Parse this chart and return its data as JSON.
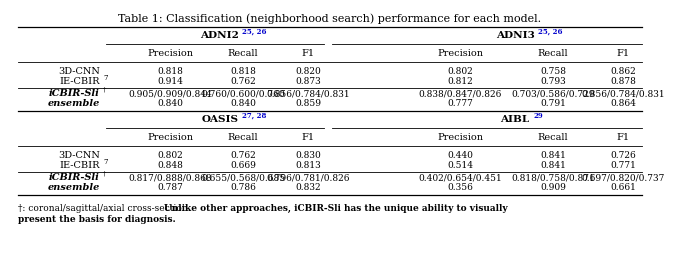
{
  "title": "Table 1: Classification (neighborhood search) performance for each model.",
  "rows_top": [
    {
      "label": "3D-CNN",
      "sup": "",
      "adni2": [
        "0.818",
        "0.818",
        "0.820"
      ],
      "adni3": [
        "0.802",
        "0.758",
        "0.862"
      ]
    },
    {
      "label": "IE-CBIR",
      "sup": "7",
      "adni2": [
        "0.914",
        "0.762",
        "0.873"
      ],
      "adni3": [
        "0.812",
        "0.793",
        "0.878"
      ]
    },
    {
      "label": "iCBIR-Sli",
      "sup": "†",
      "adni2": [
        "0.905/0.909/0.844",
        "0.760/0.600/0.760",
        "0.856/0.784/0.831"
      ],
      "adni3": [
        "0.838/0.847/0.826",
        "0.703/0.586/0.729",
        "0.856/0.784/0.831"
      ]
    },
    {
      "label": "ensemble",
      "sup": "",
      "adni2": [
        "0.840",
        "0.840",
        "0.859"
      ],
      "adni3": [
        "0.777",
        "0.791",
        "0.864"
      ]
    }
  ],
  "rows_bot": [
    {
      "label": "3D-CNN",
      "sup": "",
      "oasis": [
        "0.802",
        "0.762",
        "0.830"
      ],
      "aibl": [
        "0.440",
        "0.841",
        "0.726"
      ]
    },
    {
      "label": "IE-CBIR",
      "sup": "7",
      "oasis": [
        "0.848",
        "0.669",
        "0.813"
      ],
      "aibl": [
        "0.514",
        "0.841",
        "0.771"
      ]
    },
    {
      "label": "iCBIR-Sli",
      "sup": "†",
      "oasis": [
        "0.817/0.888/0.868",
        "0.655/0.568/0.685",
        "0.796/0.781/0.826"
      ],
      "aibl": [
        "0.402/0.654/0.451",
        "0.818/0.758/0.871",
        "0.697/0.820/0.737"
      ]
    },
    {
      "label": "ensemble",
      "sup": "",
      "oasis": [
        "0.787",
        "0.786",
        "0.832"
      ],
      "aibl": [
        "0.356",
        "0.909",
        "0.661"
      ]
    }
  ],
  "grp_top_left": {
    "name": "ADNI2",
    "sup": "25, 26"
  },
  "grp_top_right": {
    "name": "ADNI3",
    "sup": "25, 26"
  },
  "grp_bot_left": {
    "name": "OASIS",
    "sup": "27, 28"
  },
  "grp_bot_right": {
    "name": "AIBL",
    "sup": "29"
  },
  "col_labels": [
    "Precision",
    "Recall",
    "F1"
  ],
  "footnote_plain": "†: coronal/sagittal/axial cross-section. ",
  "footnote_bold": "Unlike other approaches, iCBIR-Sli has the unique ability to visually present the basis for diagnosis.",
  "sup_color": "#0000cc",
  "fs_title": 8.0,
  "fs_grp": 7.5,
  "fs_col": 7.0,
  "fs_data": 6.5,
  "fs_label": 7.0,
  "fs_sup": 5.0,
  "fs_fn": 6.5
}
